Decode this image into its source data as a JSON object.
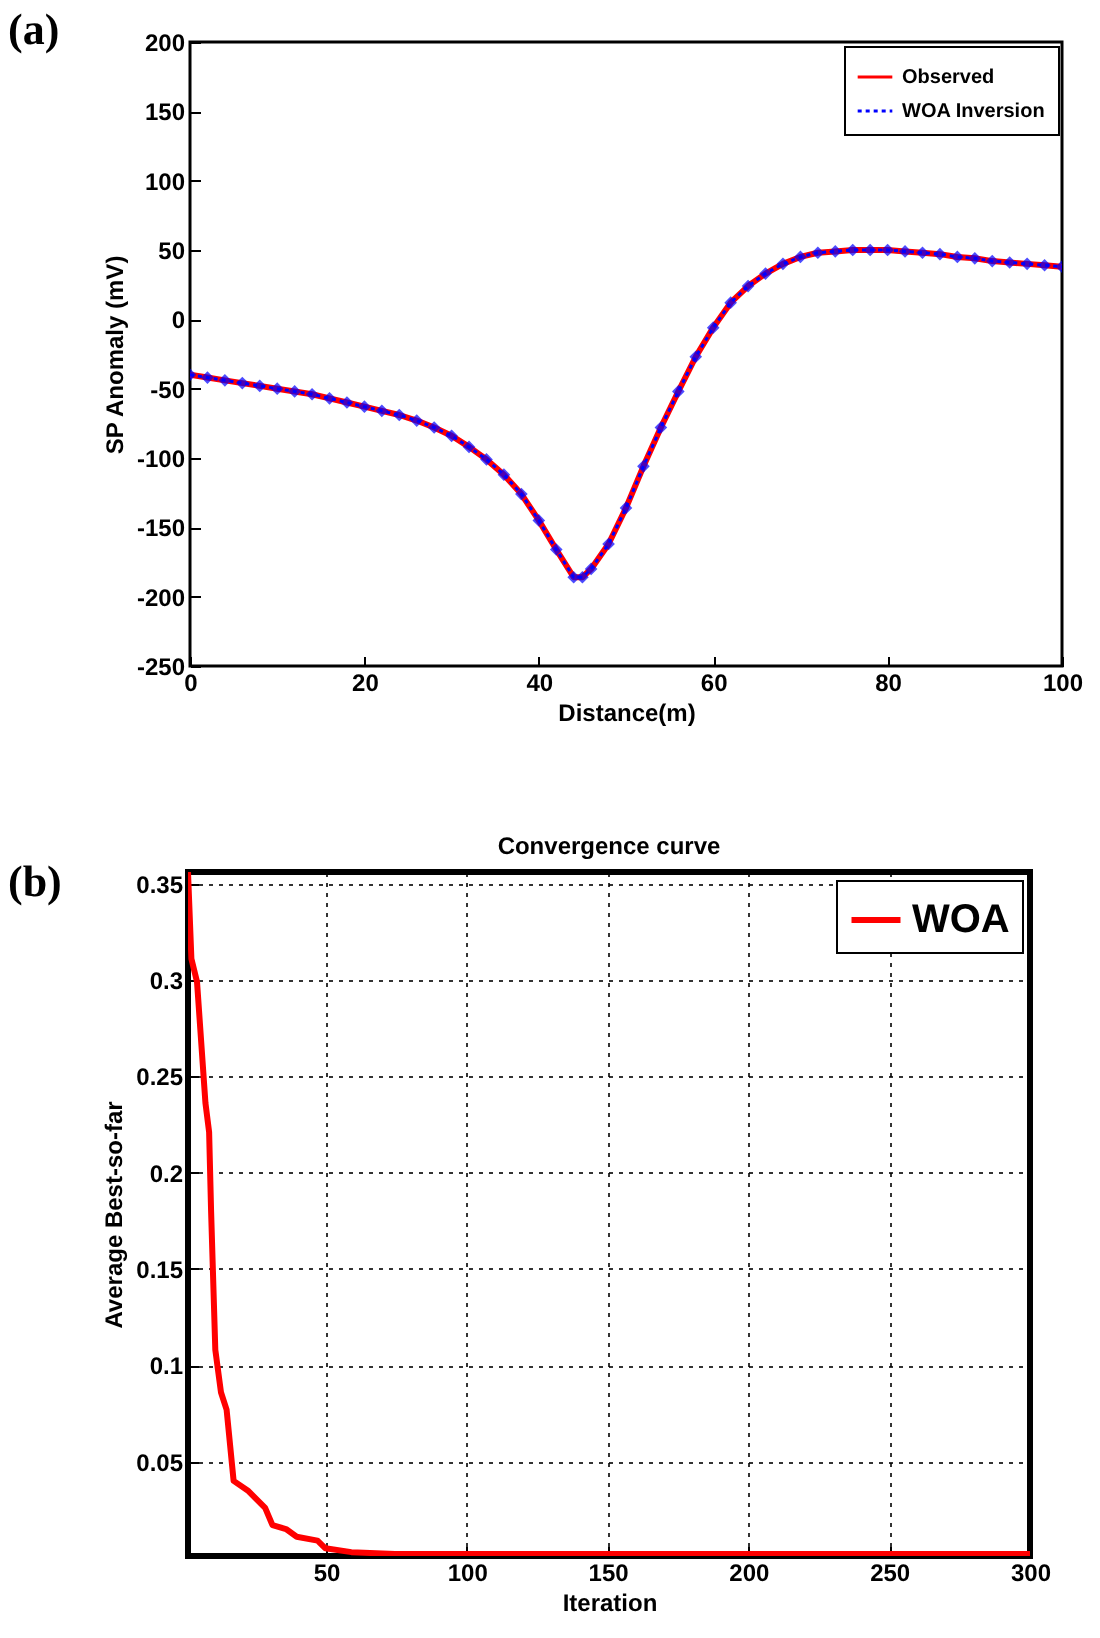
{
  "chart_data": [
    {
      "type": "line",
      "xlabel": "Distance(m)",
      "ylabel": "SP Anomaly (mV)",
      "annotations": [
        "(a)"
      ],
      "x": [
        0,
        2,
        4,
        6,
        8,
        10,
        12,
        14,
        16,
        18,
        20,
        22,
        24,
        26,
        28,
        30,
        32,
        34,
        36,
        38,
        40,
        42,
        44,
        45,
        46,
        48,
        50,
        52,
        54,
        56,
        58,
        60,
        62,
        64,
        66,
        68,
        70,
        72,
        74,
        76,
        78,
        80,
        82,
        84,
        86,
        88,
        90,
        92,
        94,
        96,
        98,
        100
      ],
      "series": [
        {
          "name": "Observed",
          "color": "#ff0000",
          "line_style": "solid",
          "marker": "none",
          "values": [
            -40,
            -42,
            -44,
            -46,
            -48,
            -50,
            -52,
            -54,
            -57,
            -60,
            -63,
            -66,
            -69,
            -73,
            -78,
            -84,
            -92,
            -101,
            -112,
            -126,
            -145,
            -166,
            -186,
            -186,
            -180,
            -162,
            -136,
            -106,
            -78,
            -52,
            -27,
            -6,
            12,
            24,
            33,
            40,
            45,
            48,
            49,
            50,
            50,
            50,
            49,
            48,
            47,
            45,
            44,
            42,
            41,
            40,
            39,
            38
          ]
        },
        {
          "name": "WOA Inversion",
          "color": "#0000ff",
          "line_style": "dotted",
          "marker": "diamond",
          "values": [
            -40,
            -42,
            -44,
            -46,
            -48,
            -50,
            -52,
            -54,
            -57,
            -60,
            -63,
            -66,
            -69,
            -73,
            -78,
            -84,
            -92,
            -101,
            -112,
            -126,
            -145,
            -166,
            -186,
            -186,
            -180,
            -162,
            -136,
            -106,
            -78,
            -52,
            -27,
            -6,
            12,
            24,
            33,
            40,
            45,
            48,
            49,
            50,
            50,
            50,
            49,
            48,
            47,
            45,
            44,
            42,
            41,
            40,
            39,
            38
          ]
        }
      ],
      "xlim": [
        0,
        100
      ],
      "xticks": [
        0,
        20,
        40,
        60,
        80,
        100
      ],
      "ylim": [
        -250,
        200
      ],
      "yticks": [
        -250,
        -200,
        -150,
        -100,
        -50,
        0,
        50,
        100,
        150,
        200
      ],
      "grid": false,
      "legend": "top right"
    },
    {
      "type": "line",
      "title": "Convergence curve",
      "xlabel": "Iteration",
      "ylabel": "Average Best-so-far",
      "annotations": [
        "(b)"
      ],
      "x": [
        1,
        2.2,
        4.2,
        7.2,
        8.5,
        9.2,
        10.7,
        12.7,
        14.7,
        17.2,
        22.2,
        28.4,
        31,
        35.8,
        39.6,
        47,
        49.8,
        59,
        74.5,
        100,
        150,
        200,
        250,
        300
      ],
      "series": [
        {
          "name": "WOA",
          "color": "#ff0000",
          "line_style": "solid",
          "marker": "none",
          "values": [
            0.356,
            0.311,
            0.299,
            0.236,
            0.221,
            0.18,
            0.108,
            0.086,
            0.077,
            0.04,
            0.035,
            0.026,
            0.017,
            0.015,
            0.011,
            0.009,
            0.005,
            0.003,
            0.002,
            0.002,
            0.002,
            0.002,
            0.002,
            0.002
          ]
        }
      ],
      "xlim": [
        1,
        300
      ],
      "xticks": [
        50,
        100,
        150,
        200,
        250,
        300
      ],
      "ylim": [
        0.001,
        0.356
      ],
      "yticks": [
        0.05,
        0.1,
        0.15,
        0.2,
        0.25,
        0.3,
        0.35
      ],
      "grid": true,
      "legend": "top right"
    }
  ]
}
